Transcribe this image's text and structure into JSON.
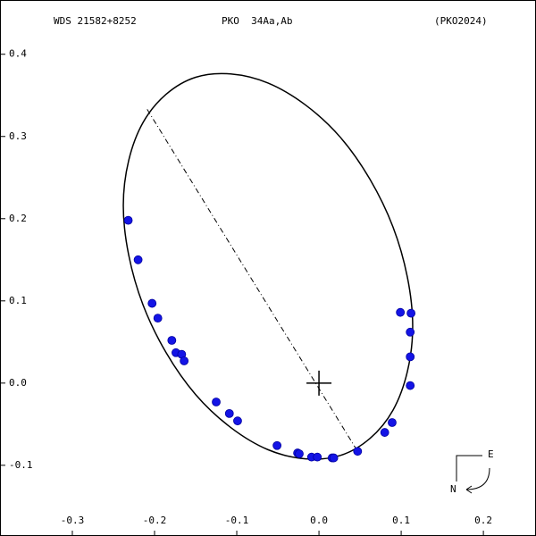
{
  "chart_data": {
    "type": "scatter",
    "title_left": "WDS 21582+8252",
    "title_center": "PKO  34Aa,Ab",
    "title_right": "(PKO2024)",
    "x": [
      -0.232,
      -0.22,
      -0.203,
      -0.196,
      -0.179,
      -0.174,
      -0.167,
      -0.164,
      -0.125,
      -0.109,
      -0.099,
      -0.051,
      -0.026,
      -0.024,
      -0.009,
      -0.002,
      0.016,
      0.018,
      0.047,
      0.08,
      0.089,
      0.099,
      0.112,
      0.111,
      0.111,
      0.111
    ],
    "y": [
      0.198,
      0.15,
      0.097,
      0.079,
      0.052,
      0.037,
      0.035,
      0.027,
      -0.023,
      -0.037,
      -0.046,
      -0.076,
      -0.085,
      -0.086,
      -0.09,
      -0.09,
      -0.091,
      -0.091,
      -0.083,
      -0.06,
      -0.048,
      0.086,
      0.085,
      0.062,
      0.032,
      -0.003
    ],
    "color": "#1414e6",
    "orbit": {
      "x": [
        0.114,
        0.09,
        0.026,
        -0.062,
        -0.15,
        -0.214,
        -0.238,
        -0.214,
        -0.15,
        -0.062,
        0.026,
        0.09
      ],
      "y": [
        0.069,
        0.19,
        0.299,
        0.365,
        0.372,
        0.317,
        0.216,
        0.095,
        -0.014,
        -0.081,
        -0.088,
        -0.033
      ]
    },
    "node_line": {
      "x": [
        -0.209,
        0.047
      ],
      "y": [
        0.333,
        -0.083
      ]
    },
    "xlim": [
      -0.388,
      0.264
    ],
    "ylim": [
      -0.186,
      0.466
    ],
    "xticks": [
      -0.3,
      -0.2,
      -0.1,
      {
        "value": 0,
        "label": "0.0"
      },
      0.1,
      0.2
    ],
    "yticks": [
      0.4,
      0.3,
      0.2,
      0.1,
      {
        "value": 0,
        "label": "0.0"
      },
      -0.1
    ],
    "compass": {
      "east": "E",
      "north": "N"
    }
  }
}
